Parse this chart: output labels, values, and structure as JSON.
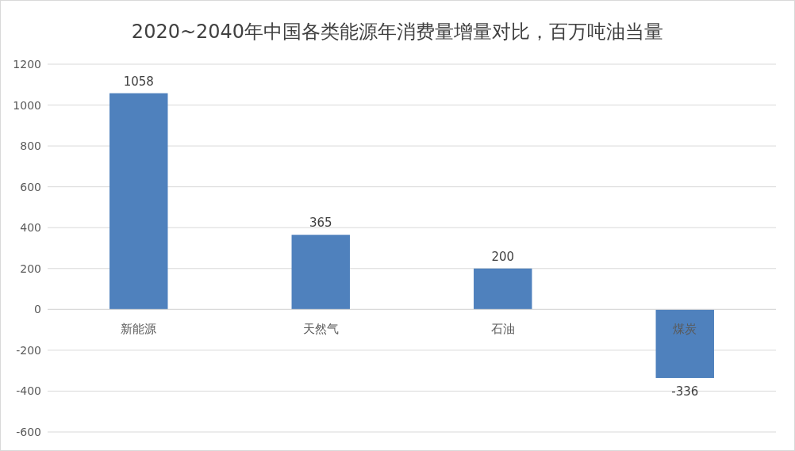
{
  "chart_data": {
    "type": "bar",
    "title": "2020~2040年中国各类能源年消费量增量对比，百万吨油当量",
    "categories": [
      "新能源",
      "天然气",
      "石油",
      "煤炭"
    ],
    "values": [
      1058,
      365,
      200,
      -336
    ],
    "color": "#4f81bd",
    "ylim": [
      -600,
      1200
    ],
    "yticks": [
      -600,
      -400,
      -200,
      0,
      200,
      400,
      600,
      800,
      1000,
      1200
    ],
    "grid": "y",
    "data_labels": true
  }
}
